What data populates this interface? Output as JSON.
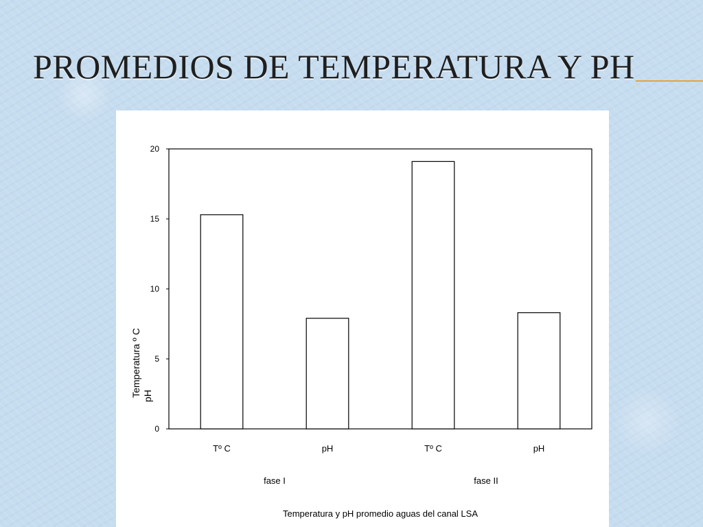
{
  "slide": {
    "title": "PROMEDIOS DE TEMPERATURA Y PH",
    "title_rule_color": "#e6a23c",
    "background_color": "#c6dcef"
  },
  "chart_data": {
    "type": "bar",
    "categories": [
      "Tº C",
      "pH",
      "Tº C",
      "pH"
    ],
    "groups": [
      {
        "label": "fase I",
        "categories": [
          0,
          1
        ]
      },
      {
        "label": "fase II",
        "categories": [
          2,
          3
        ]
      }
    ],
    "values": [
      15.3,
      7.9,
      19.1,
      8.3
    ],
    "ylabel_lines": [
      "Temperatura º C",
      "pH"
    ],
    "xlabel": "Temperatura  y pH promedio aguas del canal LSA",
    "ylim": [
      0,
      20
    ],
    "yticks": [
      0,
      5,
      10,
      15,
      20
    ],
    "grid": false,
    "legend": "none",
    "bar_fill": "#ffffff",
    "bar_stroke": "#000000"
  }
}
